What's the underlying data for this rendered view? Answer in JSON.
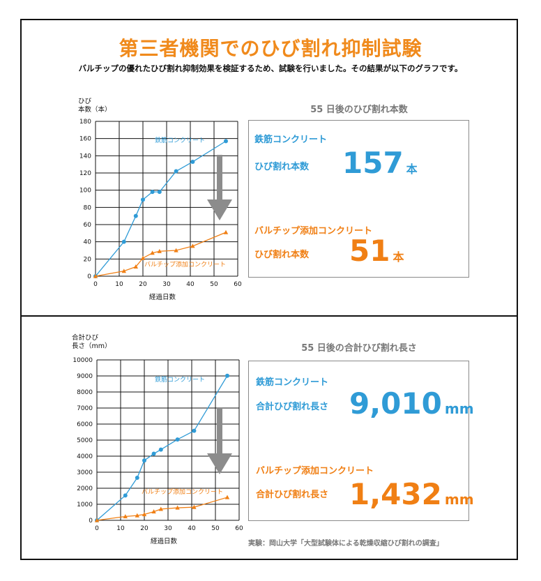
{
  "colors": {
    "title": "#f08a1c",
    "rebar": "#2f9bd6",
    "fiber": "#f07f14",
    "arrow": "#8c8c8c"
  },
  "header": {
    "title": "第三者機関でのひび割れ抑制試験",
    "subtitle": "バルチップの優れたひび割れ抑制効果を検証するため、試験を行いました。その結果が以下のグラフです。"
  },
  "chart_data": [
    {
      "type": "line",
      "ylabel_line1": "ひび",
      "ylabel_line2": "本数（本）",
      "xlabel": "経過日数",
      "xlim": [
        0,
        60
      ],
      "ylim": [
        0,
        180
      ],
      "xticks": [
        0,
        10,
        20,
        30,
        40,
        50,
        60
      ],
      "yticks": [
        0,
        20,
        40,
        60,
        80,
        100,
        120,
        140,
        160,
        180
      ],
      "grid": true,
      "series": [
        {
          "name": "鉄筋コンクリート",
          "marker": "circle",
          "x": [
            0,
            12,
            17,
            20,
            24,
            27,
            34,
            41,
            55
          ],
          "y": [
            0,
            40,
            70,
            89,
            98,
            98,
            122,
            133,
            157
          ]
        },
        {
          "name": "バルチップ添加コンクリート",
          "marker": "triangle",
          "x": [
            0,
            12,
            17,
            20,
            24,
            27,
            34,
            41,
            55
          ],
          "y": [
            0,
            6,
            11,
            21,
            27,
            29,
            30,
            35,
            51
          ]
        }
      ]
    },
    {
      "type": "line",
      "ylabel_line1": "合計ひび",
      "ylabel_line2": "長さ（mm）",
      "xlabel": "経過日数",
      "xlim": [
        0,
        60
      ],
      "ylim": [
        0,
        10000
      ],
      "xticks": [
        0,
        10,
        20,
        30,
        40,
        50,
        60
      ],
      "yticks": [
        0,
        1000,
        2000,
        3000,
        4000,
        5000,
        6000,
        7000,
        8000,
        9000,
        10000
      ],
      "grid": true,
      "series": [
        {
          "name": "鉄筋コンクリート",
          "marker": "circle",
          "x": [
            0,
            12,
            17,
            20,
            24,
            27,
            34,
            41,
            55
          ],
          "y": [
            0,
            1550,
            2650,
            3730,
            4150,
            4410,
            5040,
            5580,
            9010
          ]
        },
        {
          "name": "バルチップ添加コンクリート",
          "marker": "triangle",
          "x": [
            0,
            12,
            17,
            20,
            24,
            27,
            34,
            41,
            55
          ],
          "y": [
            0,
            240,
            300,
            370,
            540,
            700,
            780,
            820,
            1432
          ]
        }
      ]
    }
  ],
  "panels": {
    "count": {
      "title": "55 日後のひび割れ本数",
      "rebar_name": "鉄筋コンクリート",
      "rebar_metric": "ひび割れ本数",
      "rebar_value": "157",
      "rebar_unit": "本",
      "fiber_name": "バルチップ添加コンクリート",
      "fiber_metric": "ひび割れ本数",
      "fiber_value": "51",
      "fiber_unit": "本"
    },
    "length": {
      "title": "55 日後の合計ひび割れ長さ",
      "rebar_name": "鉄筋コンクリート",
      "rebar_metric": "合計ひび割れ長さ",
      "rebar_value": "9,010",
      "rebar_unit": "mm",
      "fiber_name": "バルチップ添加コンクリート",
      "fiber_metric": "合計ひび割れ長さ",
      "fiber_value": "1,432",
      "fiber_unit": "mm"
    }
  },
  "source": "実験：岡山大学「大型試験体による乾燥収縮ひび割れの調査」"
}
